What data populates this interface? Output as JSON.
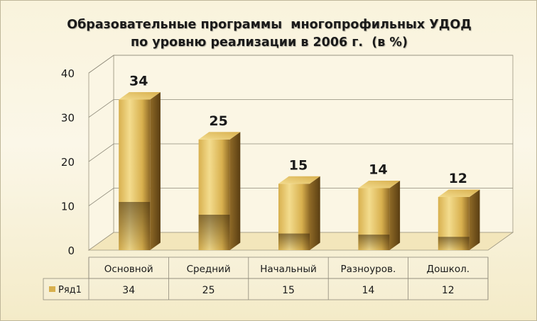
{
  "colors": {
    "bar_light": "#f3dc8e",
    "bar_mid": "#d8b04e",
    "bar_dark": "#8f6a27",
    "bar_shadow": "#5a3e12",
    "floor": "#f3e6bb",
    "wall": "#fbf6e4"
  },
  "chart_data": {
    "type": "bar",
    "title_lines": [
      "Образовательные программы  многопрофильных УДОД",
      "по уровню реализации в 2006 г.  (в %)"
    ],
    "categories": [
      "Основной",
      "Средний",
      "Начальный",
      "Разноуров.",
      "Дошкол."
    ],
    "series": [
      {
        "name": "Ряд1",
        "values": [
          34,
          25,
          15,
          14,
          12
        ]
      }
    ],
    "y_ticks": [
      "0",
      "10",
      "20",
      "30",
      "40"
    ],
    "ylim": [
      0,
      40
    ],
    "grid": true,
    "style": "3d",
    "data_labels": [
      "34",
      "25",
      "15",
      "14",
      "12"
    ],
    "data_table": true,
    "legend": "in data table"
  }
}
